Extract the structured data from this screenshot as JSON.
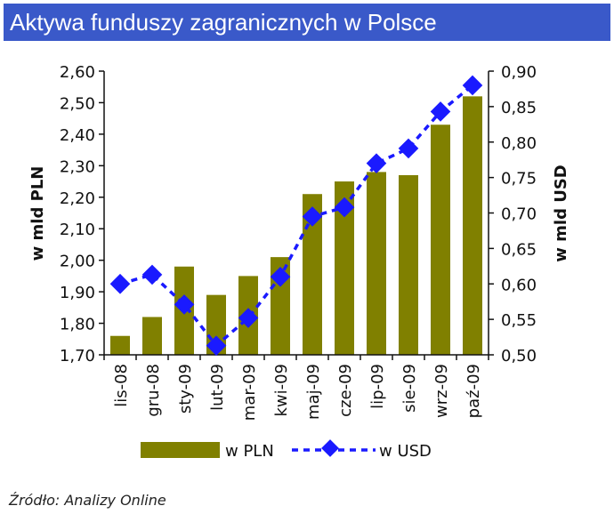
{
  "header": {
    "title": "Aktywa funduszy zagranicznych w Polsce"
  },
  "footer": {
    "source": "Źródło: Analizy Online"
  },
  "chart_data": {
    "type": "bar",
    "categories": [
      "lis-08",
      "gru-08",
      "sty-09",
      "lut-09",
      "mar-09",
      "kwi-09",
      "maj-09",
      "cze-09",
      "lip-09",
      "sie-09",
      "wrz-09",
      "paź-09"
    ],
    "series": [
      {
        "name": "w PLN",
        "type": "bar",
        "axis": "left",
        "color": "#808000",
        "values": [
          1.76,
          1.82,
          1.98,
          1.89,
          1.95,
          2.01,
          2.21,
          2.25,
          2.28,
          2.27,
          2.43,
          2.52
        ]
      },
      {
        "name": "w USD",
        "type": "line",
        "axis": "right",
        "color": "#1a1aff",
        "values": [
          0.6,
          0.613,
          0.571,
          0.513,
          0.552,
          0.61,
          0.695,
          0.708,
          0.77,
          0.791,
          0.843,
          0.88
        ]
      }
    ],
    "ylabel": "w mld PLN",
    "ylabel_right": "w mld USD",
    "ylim": [
      1.7,
      2.6
    ],
    "ylim_right": [
      0.5,
      0.9
    ],
    "yticks": [
      "1,70",
      "1,80",
      "1,90",
      "2,00",
      "2,10",
      "2,20",
      "2,30",
      "2,40",
      "2,50",
      "2,60"
    ],
    "yticks_right": [
      "0,50",
      "0,55",
      "0,60",
      "0,65",
      "0,70",
      "0,75",
      "0,80",
      "0,85",
      "0,90"
    ],
    "grid": false,
    "legend": "bottom"
  }
}
